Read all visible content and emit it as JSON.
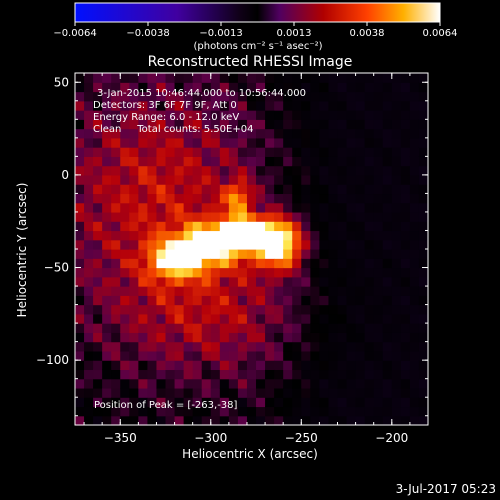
{
  "colorbar": {
    "ticks": [
      "-0.0064",
      "-0.0038",
      "-0.0013",
      "0.0013",
      "0.0038",
      "0.0064"
    ],
    "units": "(photons cm⁻² s⁻¹ asec⁻²)",
    "range": [
      -0.0064,
      0.0064
    ]
  },
  "chart_data": {
    "type": "heatmap",
    "title": "Reconstructed RHESSI Image",
    "xlabel": "Heliocentric X (arcsec)",
    "ylabel": "Heliocentric Y (arcsec)",
    "xlim": [
      -375,
      -180
    ],
    "ylim": [
      -135,
      55
    ],
    "xticks": [
      -350,
      -300,
      -250,
      -200
    ],
    "xtick_labels": [
      "−350",
      "−300",
      "−250",
      "−200"
    ],
    "yticks": [
      50,
      0,
      -50,
      -100
    ],
    "ytick_labels": [
      "50",
      "0",
      "−50",
      "−100"
    ],
    "annotations": {
      "time": "3-Jan-2015 10:46:44.000 to 10:56:44.000",
      "detectors": "Detectors: 3F 6F 7F 9F, Att 0",
      "energy": "Energy Range: 6.0 - 12.0 keV",
      "clean": "Clean     Total counts: 5.50E+04",
      "peak": "Position of Peak = [-263,-38]"
    },
    "peak": [
      -263,
      -38
    ],
    "sources": [
      {
        "x": -280,
        "y": -32,
        "sx": 14,
        "sy": 7,
        "amp": 1.0
      },
      {
        "x": -262,
        "y": -38,
        "sx": 9,
        "sy": 9,
        "amp": 0.85
      },
      {
        "x": -305,
        "y": -40,
        "sx": 12,
        "sy": 8,
        "amp": 0.75
      },
      {
        "x": -322,
        "y": -46,
        "sx": 9,
        "sy": 7,
        "amp": 0.6
      },
      {
        "x": -285,
        "y": -12,
        "sx": 5,
        "sy": 6,
        "amp": 0.55
      },
      {
        "x": -330,
        "y": -10,
        "sx": 40,
        "sy": 40,
        "amp": 0.38
      },
      {
        "x": -300,
        "y": -75,
        "sx": 40,
        "sy": 25,
        "amp": 0.28
      }
    ]
  },
  "footer": {
    "timestamp": "3-Jul-2017 05:23"
  }
}
